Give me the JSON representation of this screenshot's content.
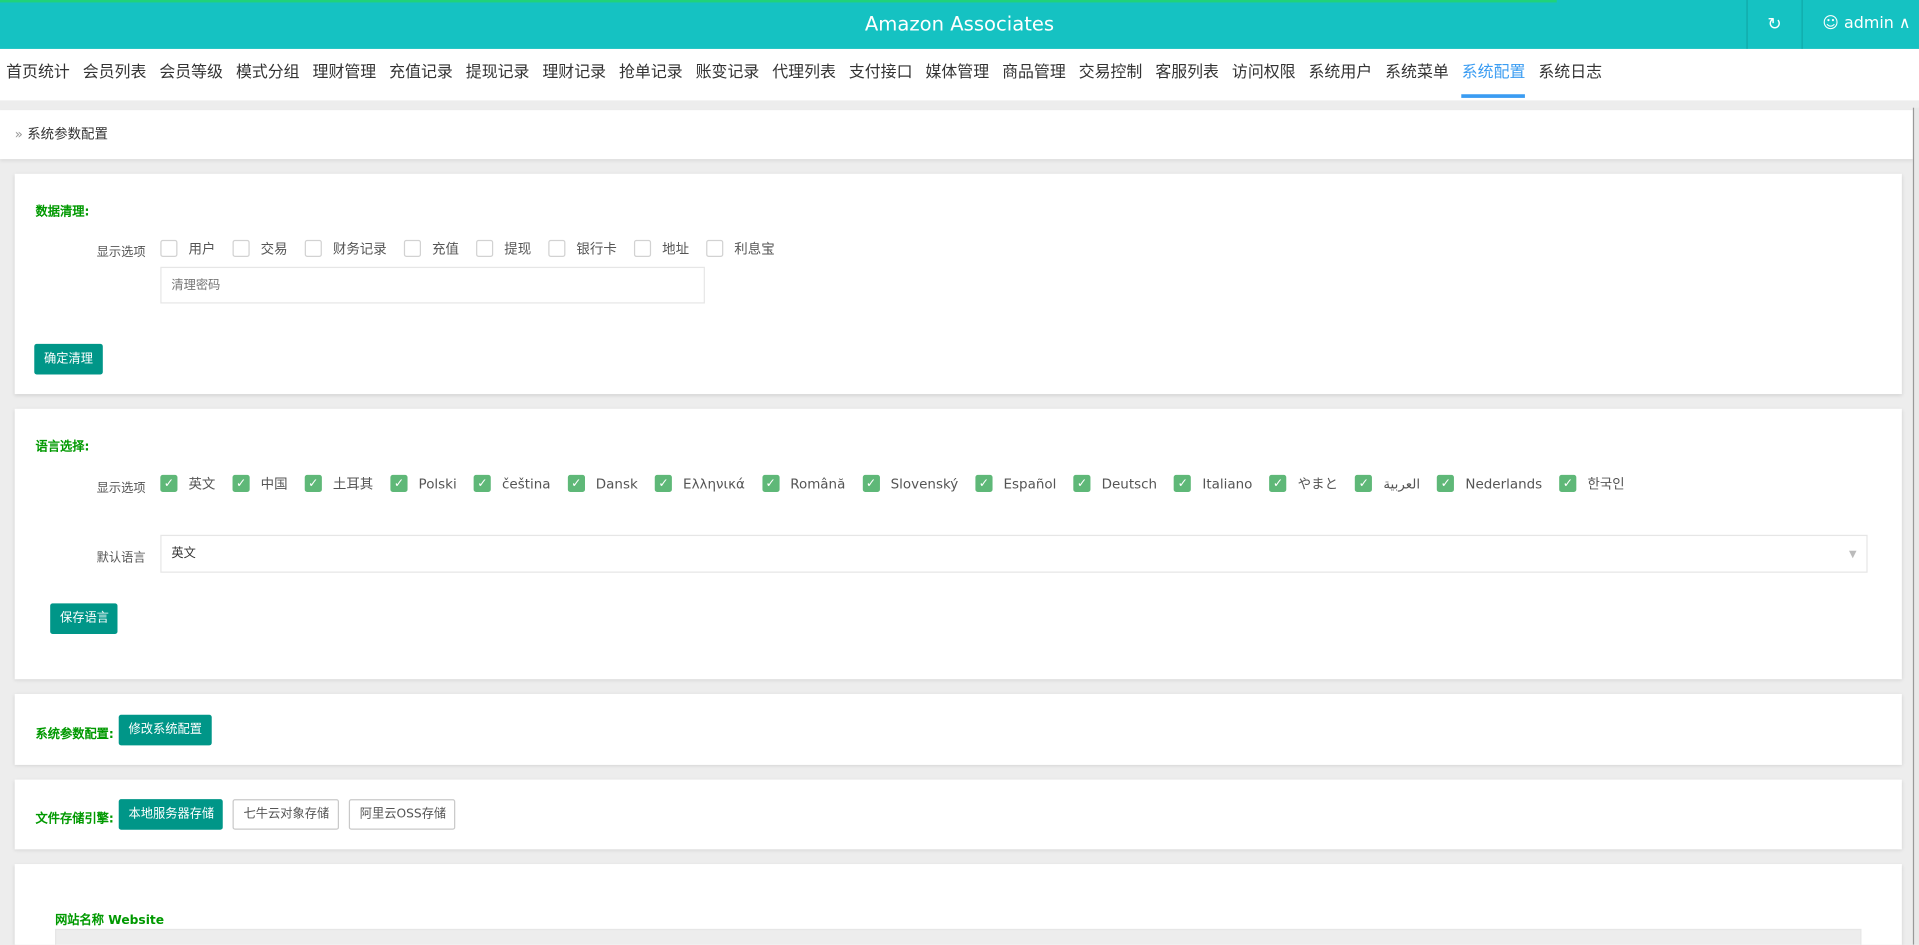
{
  "header": {
    "title": "Amazon Associates",
    "user": "admin"
  },
  "nav": {
    "items": [
      "首页统计",
      "会员列表",
      "会员等级",
      "模式分组",
      "理财管理",
      "充值记录",
      "提现记录",
      "理财记录",
      "抢单记录",
      "账变记录",
      "代理列表",
      "支付接口",
      "媒体管理",
      "商品管理",
      "交易控制",
      "客服列表",
      "访问权限",
      "系统用户",
      "系统菜单",
      "系统配置",
      "系统日志"
    ],
    "active": "系统配置"
  },
  "breadcrumb": {
    "separator": "»",
    "current": "系统参数配置"
  },
  "data_clear": {
    "title": "数据清理:",
    "label": "显示选项",
    "options": [
      "用户",
      "交易",
      "财务记录",
      "充值",
      "提现",
      "银行卡",
      "地址",
      "利息宝"
    ],
    "password_placeholder": "清理密码",
    "button": "确定清理"
  },
  "language": {
    "title": "语言选择:",
    "label": "显示选项",
    "options": [
      "英文",
      "中国",
      "土耳其",
      "Polski",
      "čeština",
      "Dansk",
      "Ελληνικά",
      "Română",
      "Slovenský",
      "Español",
      "Deutsch",
      "Italiano",
      "やまと",
      "العربية",
      "Nederlands",
      "한국인"
    ],
    "default_label": "默认语言",
    "default_value": "英文",
    "button": "保存语言"
  },
  "sys_params": {
    "title": "系统参数配置:",
    "button": "修改系统配置"
  },
  "storage": {
    "title": "文件存储引擎:",
    "options": [
      "本地服务器存储",
      "七牛云对象存储",
      "阿里云OSS存储"
    ],
    "selected": "本地服务器存储"
  },
  "website": {
    "title": "网站名称 Website"
  },
  "colors": {
    "header": "#15c2c2",
    "accent": "#009688",
    "section_title": "#009900",
    "checkbox_on": "#5fb878",
    "nav_active": "#3a9cf2"
  }
}
